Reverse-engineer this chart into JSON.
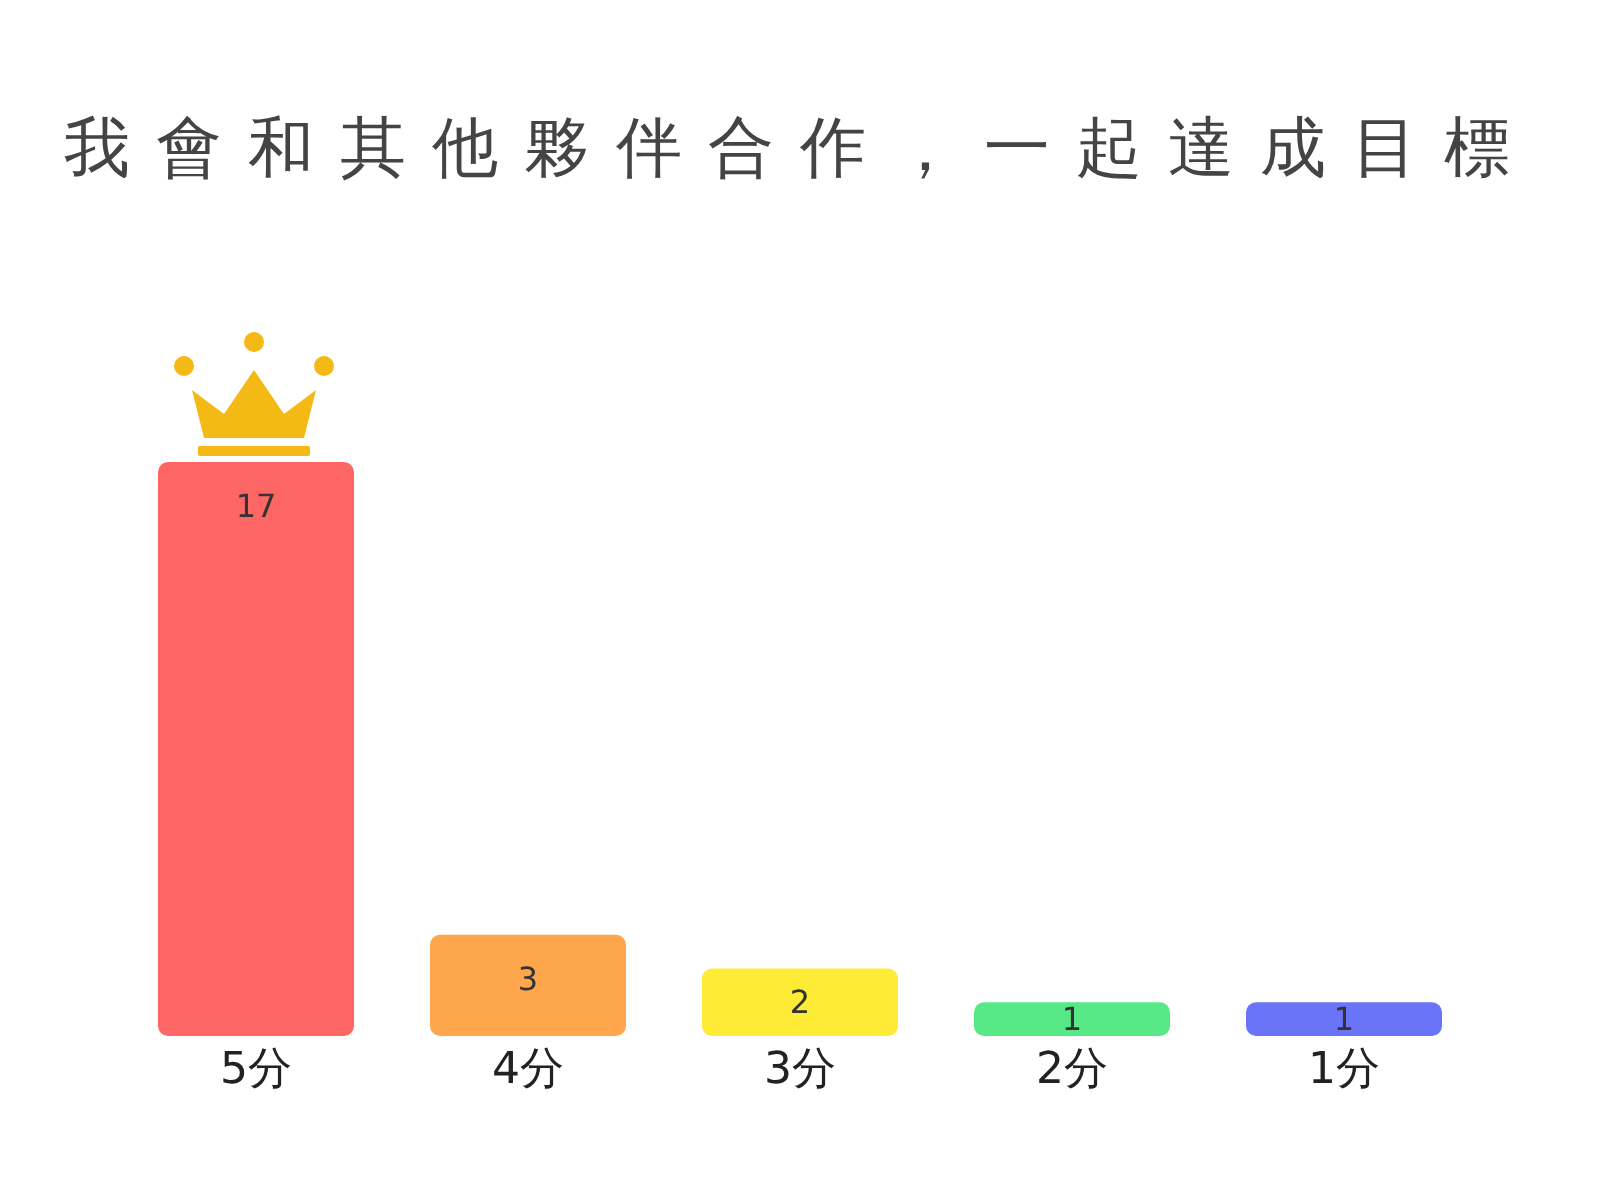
{
  "chart_data": {
    "type": "bar",
    "title": "我會和其他夥伴合作，一起達成目標",
    "categories": [
      "5分",
      "4分",
      "3分",
      "2分",
      "1分"
    ],
    "values": [
      17,
      3,
      2,
      1,
      1
    ],
    "colors": [
      "#fe6666",
      "#fea64c",
      "#fdeb35",
      "#57e986",
      "#6a74f8"
    ],
    "data_labels": true
  }
}
